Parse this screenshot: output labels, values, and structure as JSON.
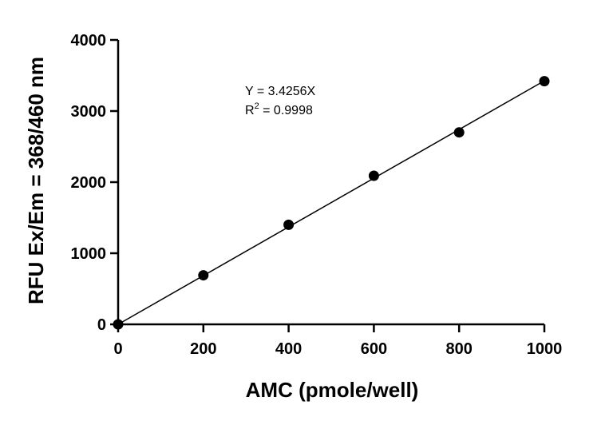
{
  "chart_data": {
    "type": "scatter",
    "title": "",
    "xlabel": "AMC (pmole/well)",
    "ylabel": "RFU Ex/Em = 368/460 nm",
    "xlim": [
      0,
      1000
    ],
    "ylim": [
      0,
      4000
    ],
    "x_ticks": [
      0,
      200,
      400,
      600,
      800,
      1000
    ],
    "y_ticks": [
      0,
      1000,
      2000,
      3000,
      4000
    ],
    "x_tick_labels": [
      "0",
      "200",
      "400",
      "600",
      "800",
      "1000"
    ],
    "y_tick_labels": [
      "0",
      "1000",
      "2000",
      "3000",
      "4000"
    ],
    "grid": false,
    "legend": "none",
    "series": [
      {
        "x": [
          0,
          200,
          400,
          600,
          800,
          1000
        ],
        "y": [
          0,
          690,
          1400,
          2090,
          2700,
          3420
        ]
      }
    ],
    "fit_line": {
      "slope": 3.4256,
      "intercept": 0,
      "x_range": [
        0,
        1000
      ]
    },
    "annotations": {
      "equation": "Y = 3.4256X",
      "r2_prefix": "R",
      "r2_superscript": "2",
      "r2_value": " = 0.9998"
    },
    "colors": {
      "marker": "#000000",
      "line": "#000000",
      "axis": "#000000",
      "background": "#ffffff"
    }
  }
}
